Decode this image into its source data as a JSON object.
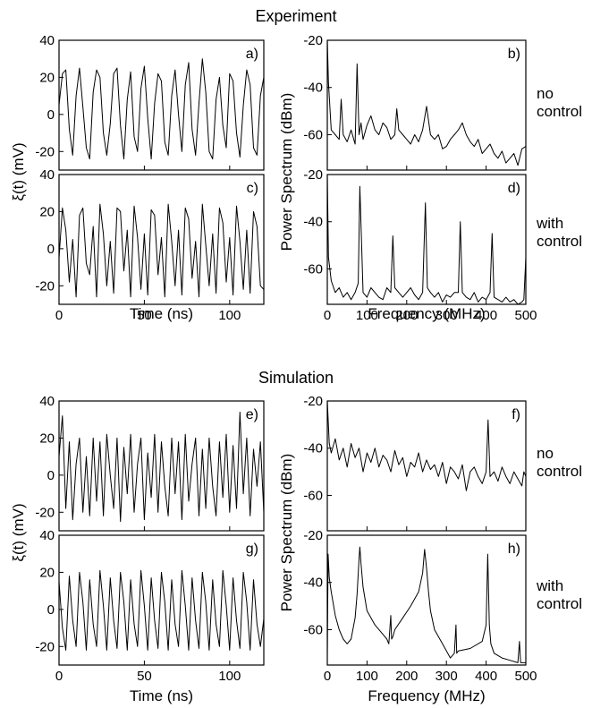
{
  "sections": [
    {
      "title": "Experiment",
      "label_no_control": [
        "no",
        "control"
      ],
      "label_with_control": [
        "with",
        "control"
      ]
    },
    {
      "title": "Simulation",
      "label_no_control": [
        "no",
        "control"
      ],
      "label_with_control": [
        "with",
        "control"
      ]
    }
  ],
  "time_axis": {
    "label": "Time (ns)",
    "xlim": [
      0,
      120
    ],
    "xticks": [
      0,
      50,
      100
    ],
    "ylabel": "ξ(t) (mV)"
  },
  "freq_axis": {
    "label": "Frequency (MHz)",
    "xlim": [
      0,
      500
    ],
    "xticks": [
      0,
      100,
      200,
      300,
      400,
      500
    ],
    "ylabel": "Power Spectrum (dBm)"
  },
  "chart_data": [
    {
      "panel": "a)",
      "type": "line",
      "kind": "time",
      "ylim": [
        -30,
        40
      ],
      "yticks": [
        -20,
        0,
        20,
        40
      ],
      "x": [
        0,
        2,
        4,
        6,
        8,
        10,
        12,
        14,
        16,
        18,
        20,
        22,
        24,
        26,
        28,
        30,
        32,
        34,
        36,
        38,
        40,
        42,
        44,
        46,
        48,
        50,
        52,
        54,
        56,
        58,
        60,
        62,
        64,
        66,
        68,
        70,
        72,
        74,
        76,
        78,
        80,
        82,
        84,
        86,
        88,
        90,
        92,
        94,
        96,
        98,
        100,
        102,
        104,
        106,
        108,
        110,
        112,
        114,
        116,
        118,
        120
      ],
      "y": [
        5,
        22,
        24,
        -8,
        -22,
        10,
        25,
        4,
        -18,
        -24,
        12,
        24,
        20,
        -10,
        -22,
        -5,
        22,
        25,
        -6,
        -24,
        8,
        23,
        -12,
        -20,
        14,
        26,
        -2,
        -24,
        6,
        22,
        18,
        -15,
        -22,
        10,
        24,
        0,
        -20,
        16,
        28,
        -8,
        -22,
        6,
        30,
        12,
        -20,
        -24,
        8,
        20,
        -6,
        -18,
        22,
        18,
        -10,
        -23,
        5,
        24,
        16,
        -18,
        -22,
        10,
        20
      ]
    },
    {
      "panel": "b)",
      "type": "line",
      "kind": "freq",
      "ylim": [
        -75,
        -20
      ],
      "yticks": [
        -20,
        -40,
        -60
      ],
      "x": [
        0,
        3,
        10,
        20,
        30,
        35,
        40,
        50,
        60,
        70,
        75,
        80,
        85,
        90,
        100,
        110,
        120,
        130,
        140,
        150,
        160,
        170,
        175,
        180,
        190,
        200,
        210,
        220,
        230,
        240,
        250,
        260,
        270,
        280,
        290,
        300,
        310,
        320,
        330,
        340,
        350,
        360,
        370,
        380,
        390,
        400,
        410,
        420,
        430,
        440,
        450,
        460,
        470,
        480,
        490,
        500
      ],
      "y": [
        -20,
        -38,
        -58,
        -60,
        -62,
        -45,
        -60,
        -63,
        -58,
        -64,
        -30,
        -60,
        -55,
        -62,
        -56,
        -52,
        -58,
        -60,
        -55,
        -57,
        -62,
        -60,
        -49,
        -58,
        -60,
        -62,
        -64,
        -60,
        -63,
        -58,
        -48,
        -60,
        -62,
        -60,
        -66,
        -65,
        -62,
        -60,
        -58,
        -55,
        -60,
        -63,
        -65,
        -62,
        -68,
        -66,
        -64,
        -68,
        -70,
        -67,
        -72,
        -70,
        -68,
        -73,
        -66,
        -65
      ]
    },
    {
      "panel": "c)",
      "type": "line",
      "kind": "time",
      "ylim": [
        -30,
        40
      ],
      "yticks": [
        -20,
        0,
        20,
        40
      ],
      "x": [
        0,
        2,
        4,
        6,
        8,
        10,
        12,
        14,
        16,
        18,
        20,
        22,
        24,
        26,
        28,
        30,
        32,
        34,
        36,
        38,
        40,
        42,
        44,
        46,
        48,
        50,
        52,
        54,
        56,
        58,
        60,
        62,
        64,
        66,
        68,
        70,
        72,
        74,
        76,
        78,
        80,
        82,
        84,
        86,
        88,
        90,
        92,
        94,
        96,
        98,
        100,
        102,
        104,
        106,
        108,
        110,
        112,
        114,
        116,
        118,
        120
      ],
      "y": [
        -5,
        22,
        10,
        -18,
        5,
        -26,
        18,
        22,
        -8,
        -14,
        12,
        -26,
        24,
        8,
        -20,
        4,
        -24,
        22,
        20,
        -12,
        10,
        -26,
        23,
        6,
        -22,
        8,
        -25,
        21,
        18,
        -14,
        6,
        -26,
        24,
        4,
        -20,
        10,
        -25,
        22,
        16,
        -16,
        4,
        -26,
        24,
        2,
        -20,
        8,
        -24,
        22,
        14,
        -18,
        6,
        -25,
        23,
        4,
        -22,
        10,
        -24,
        20,
        12,
        -20,
        -22
      ]
    },
    {
      "panel": "d)",
      "type": "line",
      "kind": "freq",
      "ylim": [
        -75,
        -20
      ],
      "yticks": [
        -20,
        -40,
        -60
      ],
      "x": [
        0,
        3,
        10,
        20,
        30,
        40,
        50,
        60,
        70,
        78,
        82,
        90,
        100,
        110,
        120,
        130,
        140,
        150,
        160,
        165,
        170,
        180,
        190,
        200,
        210,
        220,
        230,
        240,
        247,
        252,
        260,
        270,
        280,
        290,
        300,
        310,
        320,
        330,
        335,
        340,
        350,
        360,
        370,
        380,
        390,
        400,
        410,
        415,
        420,
        430,
        440,
        450,
        460,
        470,
        480,
        490,
        495,
        500
      ],
      "y": [
        -20,
        -55,
        -65,
        -70,
        -68,
        -72,
        -70,
        -73,
        -70,
        -66,
        -25,
        -70,
        -72,
        -68,
        -70,
        -72,
        -73,
        -68,
        -70,
        -46,
        -68,
        -70,
        -72,
        -70,
        -68,
        -71,
        -73,
        -70,
        -32,
        -68,
        -70,
        -72,
        -70,
        -74,
        -71,
        -72,
        -70,
        -70,
        -40,
        -70,
        -72,
        -73,
        -70,
        -74,
        -72,
        -73,
        -70,
        -45,
        -72,
        -73,
        -74,
        -72,
        -74,
        -73,
        -75,
        -74,
        -73,
        -55
      ]
    },
    {
      "panel": "e)",
      "type": "line",
      "kind": "time",
      "ylim": [
        -30,
        40
      ],
      "yticks": [
        -20,
        0,
        20,
        40
      ],
      "x": [
        0,
        2,
        4,
        6,
        8,
        10,
        12,
        14,
        16,
        18,
        20,
        22,
        24,
        26,
        28,
        30,
        32,
        34,
        36,
        38,
        40,
        42,
        44,
        46,
        48,
        50,
        52,
        54,
        56,
        58,
        60,
        62,
        64,
        66,
        68,
        70,
        72,
        74,
        76,
        78,
        80,
        82,
        84,
        86,
        88,
        90,
        92,
        94,
        96,
        98,
        100,
        102,
        104,
        106,
        108,
        110,
        112,
        114,
        116,
        118,
        120
      ],
      "y": [
        10,
        32,
        -18,
        18,
        -24,
        6,
        20,
        -20,
        10,
        -22,
        20,
        -14,
        18,
        -22,
        22,
        0,
        -18,
        20,
        -25,
        15,
        -10,
        22,
        -20,
        6,
        20,
        -24,
        12,
        -12,
        22,
        -20,
        18,
        -6,
        -22,
        20,
        -10,
        18,
        -24,
        22,
        -14,
        6,
        20,
        -22,
        14,
        -18,
        20,
        -6,
        -22,
        18,
        -12,
        22,
        -20,
        16,
        -18,
        34,
        -10,
        20,
        -22,
        14,
        -6,
        18,
        -20
      ]
    },
    {
      "panel": "f)",
      "type": "line",
      "kind": "freq",
      "ylim": [
        -75,
        -20
      ],
      "yticks": [
        -20,
        -40,
        -60
      ],
      "x": [
        0,
        5,
        10,
        20,
        30,
        40,
        50,
        60,
        70,
        80,
        90,
        100,
        110,
        120,
        130,
        140,
        150,
        160,
        170,
        180,
        190,
        200,
        210,
        220,
        230,
        240,
        250,
        260,
        270,
        280,
        290,
        300,
        310,
        320,
        330,
        340,
        350,
        360,
        370,
        380,
        390,
        400,
        405,
        410,
        420,
        430,
        440,
        450,
        460,
        470,
        480,
        490,
        495,
        500
      ],
      "y": [
        -20,
        -38,
        -42,
        -36,
        -45,
        -40,
        -48,
        -38,
        -44,
        -40,
        -50,
        -42,
        -46,
        -40,
        -48,
        -43,
        -45,
        -50,
        -41,
        -47,
        -44,
        -52,
        -46,
        -48,
        -42,
        -50,
        -45,
        -49,
        -47,
        -52,
        -46,
        -55,
        -48,
        -50,
        -53,
        -47,
        -58,
        -50,
        -48,
        -52,
        -55,
        -50,
        -28,
        -52,
        -50,
        -54,
        -48,
        -52,
        -55,
        -50,
        -53,
        -56,
        -50,
        -52
      ]
    },
    {
      "panel": "g)",
      "type": "line",
      "kind": "time",
      "ylim": [
        -30,
        40
      ],
      "yticks": [
        -20,
        0,
        20,
        40
      ],
      "x": [
        0,
        2,
        4,
        6,
        8,
        10,
        12,
        14,
        16,
        18,
        20,
        22,
        24,
        26,
        28,
        30,
        32,
        34,
        36,
        38,
        40,
        42,
        44,
        46,
        48,
        50,
        52,
        54,
        56,
        58,
        60,
        62,
        64,
        66,
        68,
        70,
        72,
        74,
        76,
        78,
        80,
        82,
        84,
        86,
        88,
        90,
        92,
        94,
        96,
        98,
        100,
        102,
        104,
        106,
        108,
        110,
        112,
        114,
        116,
        118,
        120
      ],
      "y": [
        15,
        -10,
        -22,
        18,
        -6,
        -20,
        20,
        4,
        -22,
        16,
        -8,
        -20,
        21,
        2,
        -22,
        17,
        -6,
        -21,
        20,
        4,
        -22,
        16,
        -8,
        -20,
        21,
        2,
        -22,
        17,
        -6,
        -21,
        20,
        4,
        -22,
        16,
        -8,
        -20,
        21,
        2,
        -22,
        17,
        -6,
        -21,
        20,
        4,
        -22,
        16,
        -8,
        -20,
        21,
        2,
        -22,
        17,
        -6,
        -21,
        20,
        4,
        -22,
        16,
        -8,
        -20,
        -5
      ]
    },
    {
      "panel": "h)",
      "type": "line",
      "kind": "freq",
      "ylim": [
        -75,
        -20
      ],
      "yticks": [
        -20,
        -40,
        -60
      ],
      "x": [
        0,
        2,
        5,
        10,
        20,
        30,
        40,
        50,
        60,
        70,
        75,
        80,
        82,
        85,
        90,
        100,
        120,
        140,
        150,
        155,
        160,
        162,
        165,
        170,
        190,
        210,
        230,
        240,
        245,
        250,
        255,
        260,
        270,
        290,
        310,
        320,
        324,
        326,
        330,
        360,
        390,
        400,
        404,
        408,
        412,
        420,
        440,
        460,
        480,
        484,
        487,
        490,
        500
      ],
      "y": [
        -72,
        -28,
        -38,
        -44,
        -54,
        -60,
        -64,
        -66,
        -64,
        -55,
        -45,
        -30,
        -25,
        -32,
        -42,
        -52,
        -58,
        -62,
        -64,
        -66,
        -54,
        -64,
        -63,
        -60,
        -55,
        -50,
        -44,
        -36,
        -26,
        -34,
        -44,
        -52,
        -60,
        -66,
        -72,
        -70,
        -58,
        -70,
        -69,
        -68,
        -65,
        -58,
        -28,
        -58,
        -66,
        -70,
        -72,
        -73,
        -74,
        -65,
        -74,
        -74,
        -74
      ]
    }
  ]
}
